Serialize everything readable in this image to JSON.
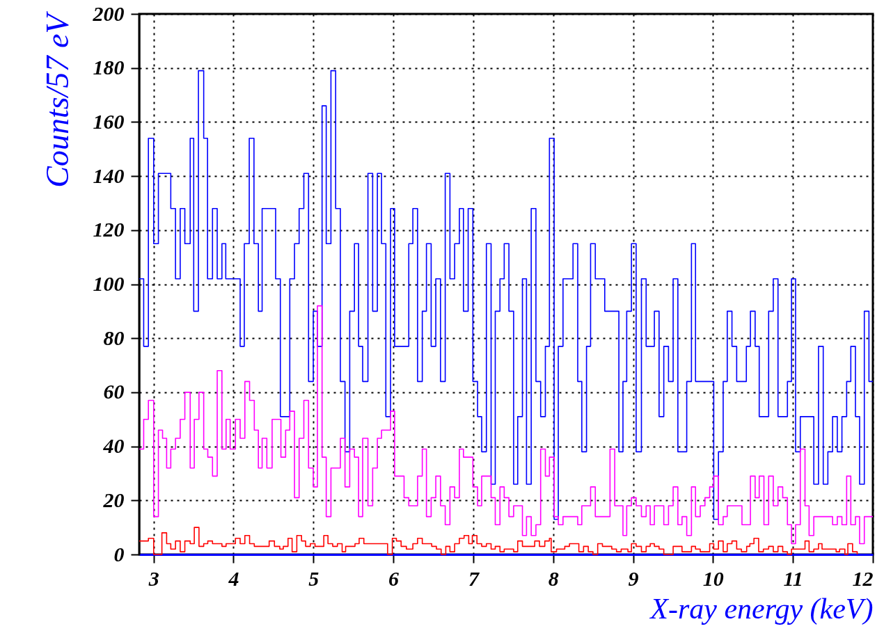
{
  "chart_data": {
    "type": "step",
    "xlabel": "X-ray energy (keV)",
    "ylabel": "Counts/57 eV",
    "xlim": [
      2.82,
      12
    ],
    "xticks": [
      3,
      4,
      5,
      6,
      7,
      8,
      9,
      10,
      11,
      12
    ],
    "ylim": [
      0,
      200
    ],
    "yticks": [
      0,
      20,
      40,
      60,
      80,
      100,
      120,
      140,
      160,
      180,
      200
    ],
    "grid": true,
    "series": [
      {
        "color": "#0000ff",
        "x": [
          2.82,
          2.876,
          2.935,
          3.001,
          3.06,
          3.215,
          3.274,
          3.333,
          3.391,
          3.458,
          3.502,
          3.561,
          3.627,
          3.675,
          3.737,
          3.796,
          3.855,
          3.903,
          4.083,
          4.135,
          4.197,
          4.256,
          4.311,
          4.358,
          4.527,
          4.586,
          4.704,
          4.763,
          4.821,
          4.88,
          4.939,
          4.998,
          5.05,
          5.108,
          5.16,
          5.219,
          5.278,
          5.337,
          5.395,
          5.454,
          5.513,
          5.565,
          5.616,
          5.682,
          5.741,
          5.8,
          5.852,
          5.906,
          5.965,
          6.016,
          6.193,
          6.244,
          6.303,
          6.362,
          6.414,
          6.473,
          6.531,
          6.59,
          6.649,
          6.708,
          6.767,
          6.826,
          6.877,
          6.936,
          6.995,
          7.054,
          7.105,
          7.164,
          7.223,
          7.275,
          7.334,
          7.387,
          7.446,
          7.505,
          7.556,
          7.615,
          7.666,
          7.725,
          7.784,
          7.843,
          7.902,
          7.953,
          8.012,
          8.064,
          8.123,
          8.248,
          8.307,
          8.358,
          8.417,
          8.468,
          8.527,
          8.645,
          8.822,
          8.873,
          8.92,
          8.979,
          9.038,
          9.104,
          9.163,
          9.266,
          9.325,
          9.384,
          9.443,
          9.501,
          9.56,
          9.671,
          9.73,
          9.781,
          10.009,
          10.068,
          10.127,
          10.178,
          10.237,
          10.296,
          10.417,
          10.468,
          10.527,
          10.578,
          10.696,
          10.754,
          10.813,
          10.931,
          10.982,
          11.033,
          11.092,
          11.261,
          11.32,
          11.379,
          11.437,
          11.496,
          11.555,
          11.613,
          11.672,
          11.724,
          11.782,
          11.834,
          11.893,
          11.951,
          12
        ],
        "values": [
          102,
          77,
          154,
          115,
          141,
          128,
          102,
          128,
          115,
          154,
          90,
          179,
          154,
          102,
          128,
          102,
          115,
          102,
          77,
          115,
          154,
          115,
          90,
          128,
          102,
          51,
          102,
          115,
          128,
          141,
          64,
          90,
          77,
          166,
          115,
          179,
          128,
          64,
          38,
          90,
          115,
          77,
          64,
          141,
          90,
          141,
          115,
          51,
          128,
          77,
          115,
          128,
          64,
          90,
          115,
          77,
          102,
          64,
          141,
          102,
          115,
          128,
          90,
          128,
          64,
          51,
          38,
          115,
          26,
          90,
          102,
          115,
          90,
          26,
          51,
          102,
          26,
          128,
          64,
          51,
          77,
          154,
          13,
          77,
          102,
          115,
          64,
          38,
          77,
          115,
          102,
          90,
          38,
          64,
          90,
          115,
          38,
          102,
          77,
          90,
          51,
          77,
          64,
          102,
          38,
          64,
          115,
          64,
          13,
          38,
          64,
          90,
          77,
          64,
          77,
          90,
          77,
          51,
          90,
          102,
          51,
          64,
          102,
          38,
          51,
          26,
          77,
          26,
          38,
          51,
          38,
          51,
          64,
          77,
          51,
          26,
          90,
          64,
          64
        ]
      },
      {
        "color": "#ff00ff",
        "x": [
          2.82,
          2.876,
          2.935,
          3.001,
          3.06,
          3.112,
          3.163,
          3.215,
          3.274,
          3.333,
          3.391,
          3.458,
          3.509,
          3.568,
          3.627,
          3.678,
          3.737,
          3.796,
          3.855,
          3.907,
          3.958,
          4.024,
          4.083,
          4.142,
          4.201,
          4.26,
          4.311,
          4.358,
          4.417,
          4.483,
          4.593,
          4.652,
          4.704,
          4.763,
          4.821,
          4.88,
          4.939,
          4.998,
          5.05,
          5.108,
          5.16,
          5.219,
          5.337,
          5.395,
          5.454,
          5.513,
          5.565,
          5.616,
          5.682,
          5.741,
          5.8,
          5.852,
          5.965,
          6.016,
          6.134,
          6.193,
          6.303,
          6.362,
          6.414,
          6.473,
          6.531,
          6.59,
          6.649,
          6.708,
          6.767,
          6.826,
          6.877,
          6.995,
          7.054,
          7.105,
          7.223,
          7.275,
          7.334,
          7.387,
          7.446,
          7.505,
          7.615,
          7.666,
          7.725,
          7.784,
          7.843,
          7.902,
          7.953,
          8.012,
          8.064,
          8.123,
          8.307,
          8.358,
          8.468,
          8.527,
          8.711,
          8.77,
          8.873,
          8.92,
          8.979,
          9.038,
          9.104,
          9.163,
          9.214,
          9.266,
          9.384,
          9.443,
          9.501,
          9.56,
          9.612,
          9.671,
          9.73,
          9.781,
          9.84,
          9.899,
          9.958,
          10.009,
          10.068,
          10.127,
          10.178,
          10.362,
          10.468,
          10.527,
          10.578,
          10.637,
          10.696,
          10.754,
          10.813,
          10.872,
          10.931,
          10.982,
          11.033,
          11.092,
          11.151,
          11.202,
          11.261,
          11.496,
          11.555,
          11.613,
          11.672,
          11.724,
          11.782,
          11.834,
          11.893,
          12
        ],
        "values": [
          39,
          50,
          57,
          14,
          46,
          43,
          32,
          39,
          43,
          50,
          60,
          32,
          50,
          60,
          39,
          36,
          29,
          68,
          39,
          50,
          39,
          50,
          43,
          64,
          57,
          46,
          32,
          43,
          32,
          50,
          36,
          46,
          53,
          21,
          43,
          57,
          32,
          25,
          92,
          36,
          14,
          32,
          43,
          25,
          39,
          36,
          14,
          43,
          18,
          32,
          43,
          46,
          53,
          29,
          21,
          18,
          29,
          39,
          14,
          21,
          29,
          18,
          11,
          25,
          21,
          39,
          36,
          25,
          18,
          29,
          21,
          11,
          25,
          21,
          14,
          18,
          7,
          14,
          7,
          11,
          39,
          29,
          36,
          14,
          11,
          14,
          11,
          18,
          25,
          14,
          39,
          18,
          7,
          18,
          21,
          18,
          14,
          18,
          11,
          18,
          11,
          18,
          25,
          11,
          14,
          7,
          25,
          14,
          18,
          21,
          25,
          29,
          11,
          14,
          18,
          11,
          29,
          21,
          29,
          11,
          29,
          18,
          25,
          21,
          11,
          4,
          11,
          39,
          18,
          7,
          14,
          11,
          14,
          11,
          29,
          11,
          14,
          4,
          14,
          14
        ]
      },
      {
        "color": "#ff0000",
        "x": [
          2.82,
          2.935,
          3.001,
          3.104,
          3.163,
          3.215,
          3.274,
          3.333,
          3.391,
          3.458,
          3.509,
          3.568,
          3.627,
          3.678,
          3.737,
          3.855,
          3.907,
          4.024,
          4.083,
          4.142,
          4.201,
          4.26,
          4.446,
          4.512,
          4.579,
          4.623,
          4.682,
          4.733,
          4.792,
          4.851,
          4.902,
          4.961,
          5.02,
          5.13,
          5.182,
          5.241,
          5.3,
          5.359,
          5.403,
          5.52,
          5.572,
          5.631,
          5.928,
          5.987,
          6.038,
          6.097,
          6.163,
          6.244,
          6.303,
          6.362,
          6.48,
          6.539,
          6.598,
          6.656,
          6.708,
          6.767,
          6.826,
          6.885,
          6.943,
          6.988,
          7.046,
          7.105,
          7.164,
          7.223,
          7.275,
          7.334,
          7.387,
          7.505,
          7.556,
          7.615,
          7.769,
          7.828,
          7.895,
          7.953,
          7.975,
          8.042,
          8.145,
          8.204,
          8.321,
          8.38,
          8.439,
          8.498,
          8.557,
          8.616,
          8.733,
          8.792,
          8.851,
          8.935,
          8.979,
          9.038,
          9.104,
          9.163,
          9.214,
          9.266,
          9.325,
          9.384,
          9.501,
          9.612,
          9.73,
          9.781,
          9.84,
          9.958,
          10.009,
          10.068,
          10.127,
          10.178,
          10.237,
          10.296,
          10.355,
          10.421,
          10.461,
          10.512,
          10.571,
          10.63,
          10.696,
          10.754,
          10.813,
          10.872,
          10.931,
          10.982,
          11.151,
          11.202,
          11.261,
          11.32,
          11.364,
          11.54,
          11.584,
          11.65,
          11.687,
          11.746,
          11.804
        ],
        "values": [
          5,
          6,
          0,
          8,
          4,
          2,
          5,
          1,
          5,
          4,
          10,
          3,
          4,
          5,
          4,
          3,
          4,
          6,
          4,
          7,
          4,
          3,
          5,
          3,
          2,
          3,
          6,
          1,
          7,
          5,
          3,
          4,
          3,
          7,
          4,
          3,
          4,
          1,
          3,
          4,
          6,
          4,
          0,
          6,
          5,
          3,
          2,
          4,
          6,
          4,
          3,
          2,
          0,
          3,
          1,
          4,
          6,
          7,
          4,
          7,
          4,
          3,
          4,
          2,
          3,
          1,
          2,
          1,
          5,
          3,
          5,
          3,
          5,
          6,
          1,
          2,
          3,
          4,
          1,
          3,
          1,
          0,
          4,
          3,
          2,
          1,
          2,
          1,
          4,
          3,
          1,
          3,
          4,
          3,
          2,
          0,
          3,
          1,
          3,
          2,
          1,
          4,
          2,
          5,
          1,
          4,
          5,
          2,
          1,
          3,
          4,
          6,
          1,
          2,
          3,
          1,
          3,
          1,
          0,
          2,
          5,
          1,
          2,
          4,
          2,
          1,
          2,
          0,
          4,
          1,
          0
        ]
      }
    ]
  }
}
